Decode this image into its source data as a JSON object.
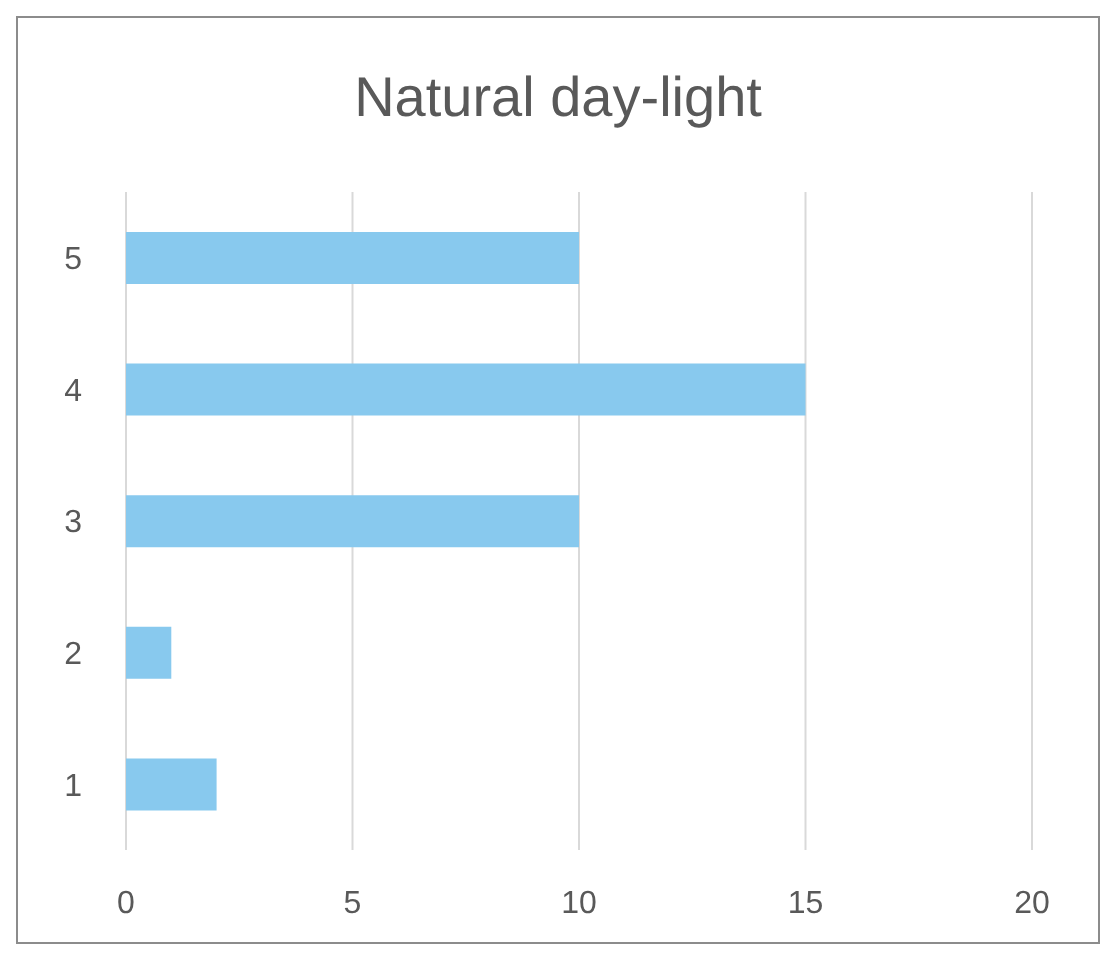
{
  "chart_data": {
    "type": "bar",
    "orientation": "horizontal",
    "title": "Natural day-light",
    "categories": [
      "5",
      "4",
      "3",
      "2",
      "1"
    ],
    "values": [
      10,
      15,
      10,
      1,
      2
    ],
    "color": "#88c9ee",
    "xlim": [
      0,
      20
    ],
    "xticks": [
      0,
      5,
      10,
      15,
      20
    ],
    "grid": "x"
  }
}
